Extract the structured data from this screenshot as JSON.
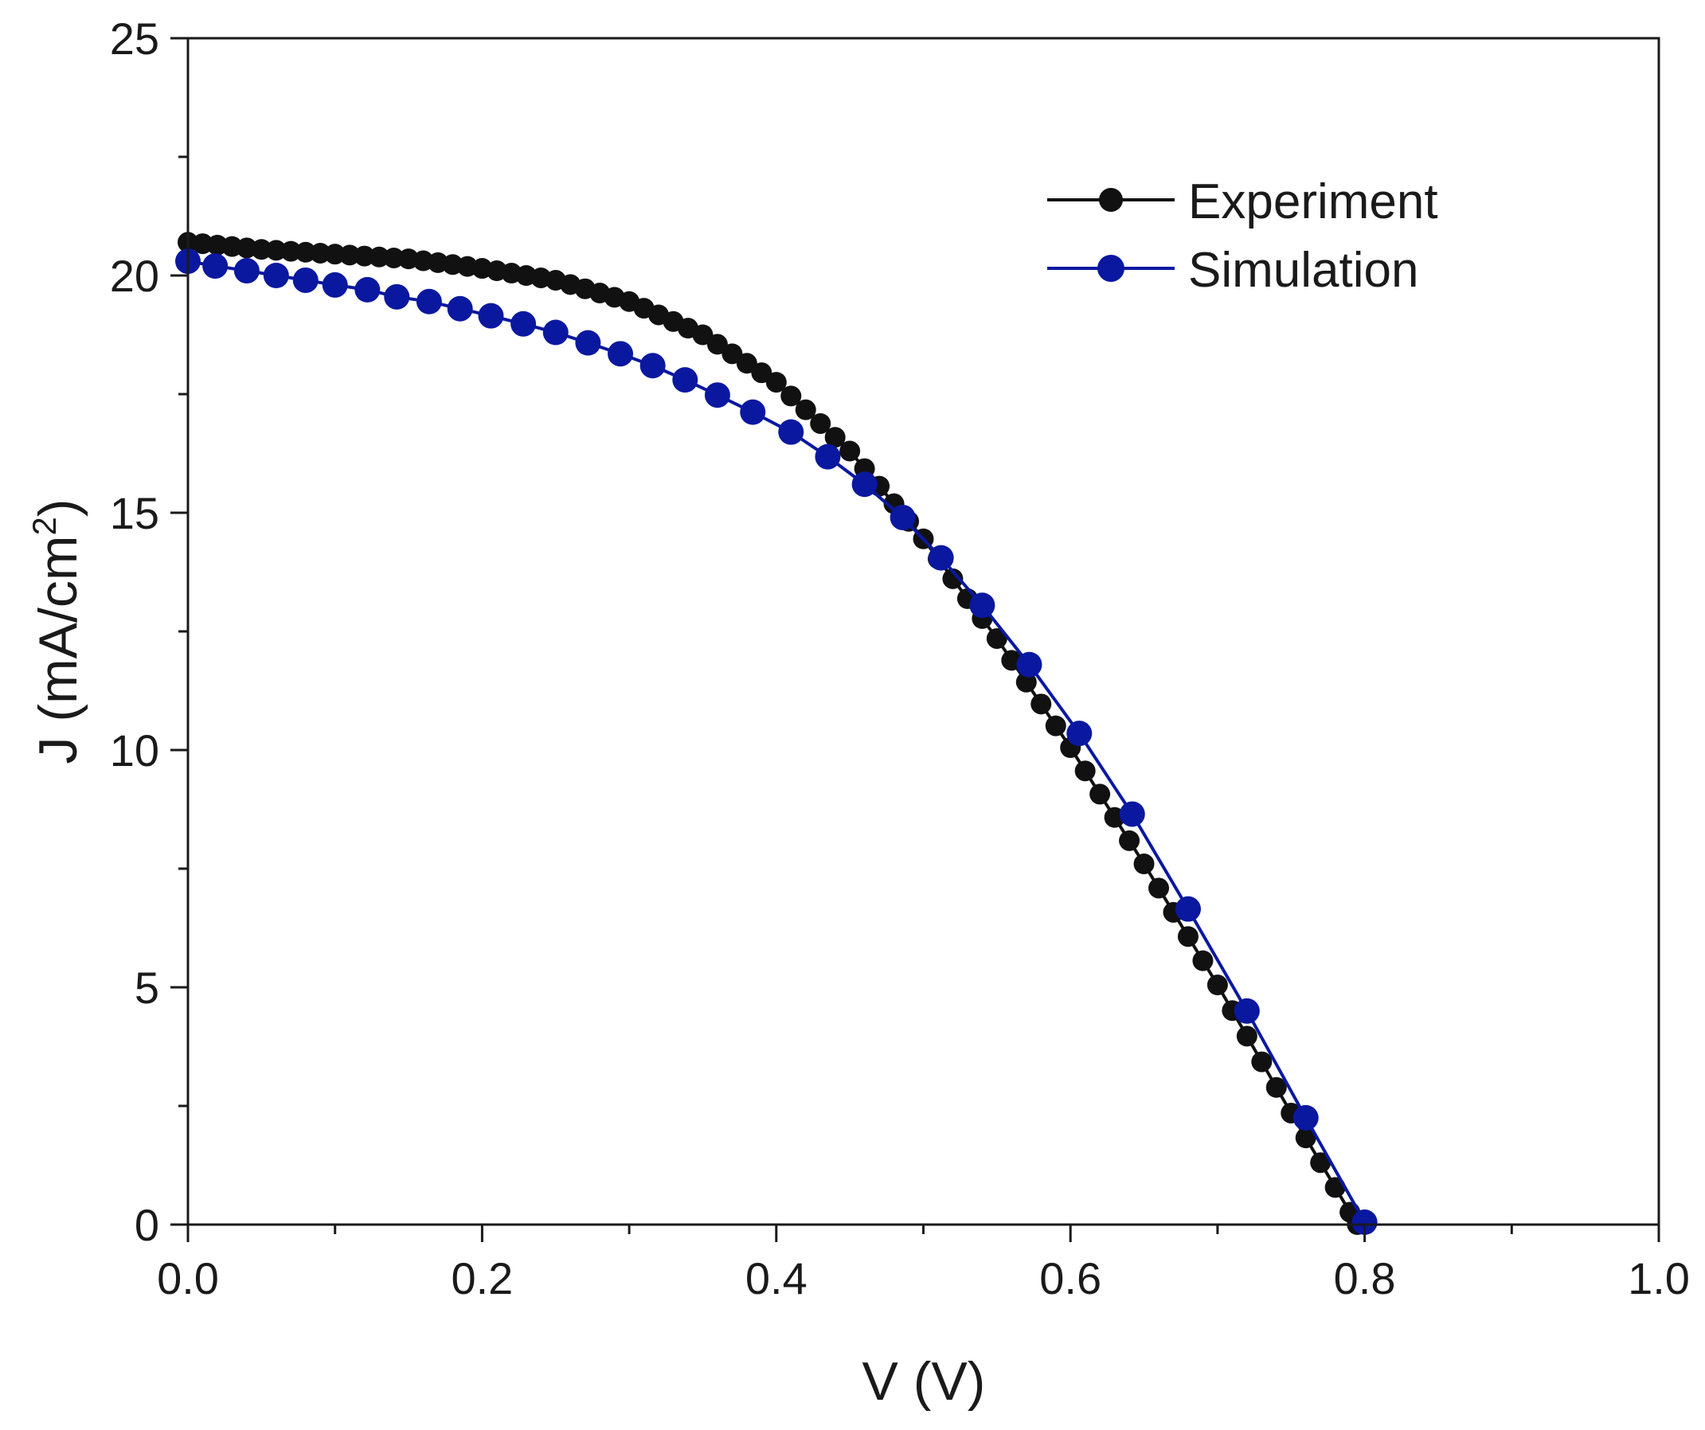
{
  "chart_data": {
    "type": "line",
    "title": "",
    "xlabel": "V (V)",
    "ylabel": "J (mA/cm",
    "ylabel_sup": "2",
    "ylabel_close": ")",
    "xlim": [
      0.0,
      1.0
    ],
    "ylim": [
      0,
      25
    ],
    "xticks": [
      "0.0",
      "0.2",
      "0.4",
      "0.6",
      "0.8",
      "1.0"
    ],
    "yticks": [
      "0",
      "5",
      "10",
      "15",
      "20",
      "25"
    ],
    "grid": false,
    "legend_position": "top-right",
    "series": [
      {
        "name": "Experiment",
        "color": "#111111",
        "marker": "circle",
        "anchors": [
          [
            0.0,
            20.7
          ],
          [
            0.05,
            20.55
          ],
          [
            0.1,
            20.45
          ],
          [
            0.15,
            20.35
          ],
          [
            0.2,
            20.15
          ],
          [
            0.25,
            19.9
          ],
          [
            0.3,
            19.45
          ],
          [
            0.35,
            18.75
          ],
          [
            0.4,
            17.75
          ],
          [
            0.45,
            16.3
          ],
          [
            0.5,
            14.45
          ],
          [
            0.55,
            12.35
          ],
          [
            0.6,
            10.05
          ],
          [
            0.65,
            7.6
          ],
          [
            0.7,
            5.05
          ],
          [
            0.75,
            2.35
          ],
          [
            0.795,
            0.0
          ]
        ],
        "step": 0.01
      },
      {
        "name": "Simulation",
        "color": "#0a18a0",
        "marker": "circle",
        "x": [
          0.0,
          0.0185,
          0.04,
          0.06,
          0.08,
          0.1,
          0.122,
          0.142,
          0.164,
          0.185,
          0.206,
          0.228,
          0.25,
          0.272,
          0.294,
          0.316,
          0.338,
          0.36,
          0.384,
          0.41,
          0.435,
          0.46,
          0.486,
          0.512,
          0.54,
          0.572,
          0.606,
          0.642,
          0.68,
          0.72,
          0.76,
          0.8
        ],
        "y": [
          20.3,
          20.2,
          20.1,
          20.0,
          19.9,
          19.8,
          19.7,
          19.55,
          19.45,
          19.3,
          19.15,
          18.98,
          18.8,
          18.58,
          18.35,
          18.1,
          17.8,
          17.48,
          17.12,
          16.7,
          16.18,
          15.6,
          14.9,
          14.05,
          13.05,
          11.8,
          10.35,
          8.65,
          6.65,
          4.5,
          2.25,
          0.05
        ]
      }
    ]
  }
}
